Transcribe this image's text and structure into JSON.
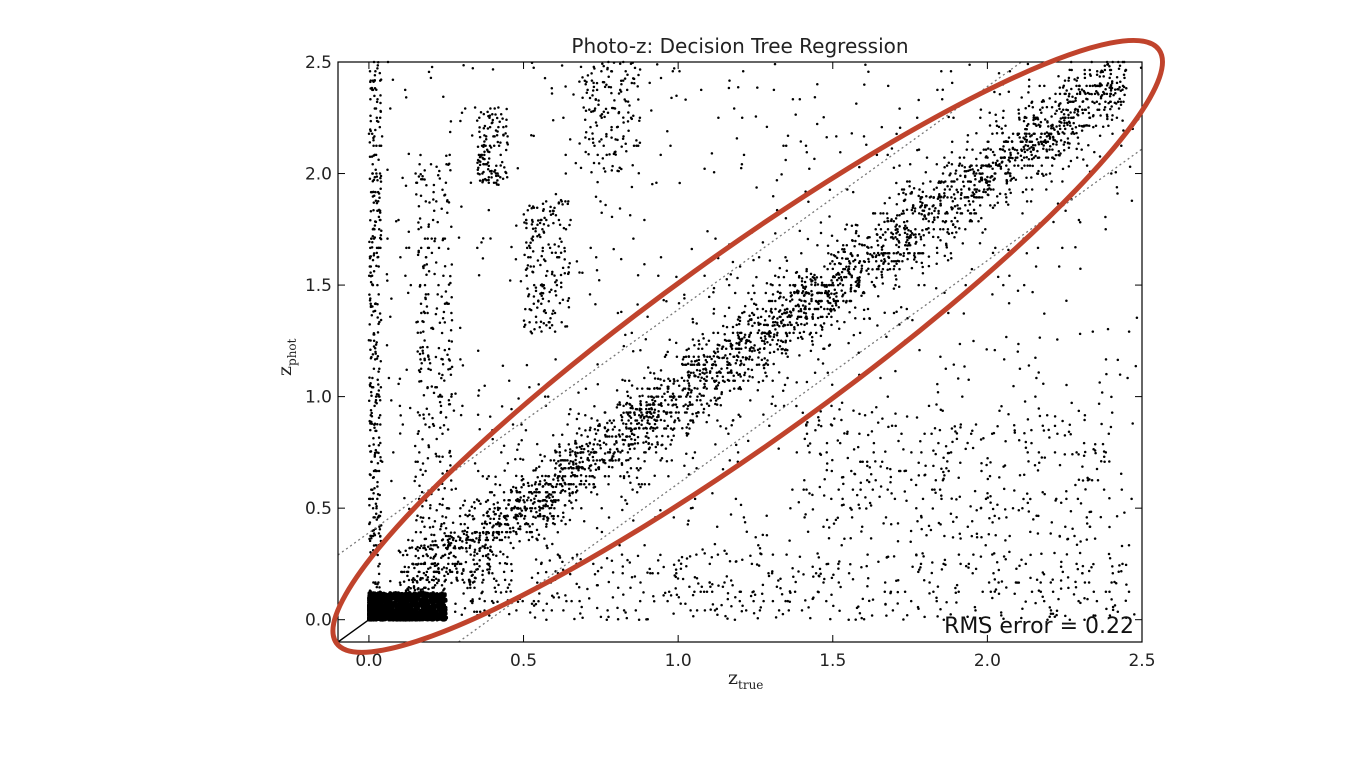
{
  "chart_data": {
    "type": "scatter",
    "title": "Photo-z: Decision Tree Regression",
    "xlabel": {
      "base": "z",
      "sub": "true"
    },
    "ylabel": {
      "base": "z",
      "sub": "phot"
    },
    "xlim": [
      -0.1,
      2.5
    ],
    "ylim": [
      -0.1,
      2.5
    ],
    "xticks": [
      0.0,
      0.5,
      1.0,
      1.5,
      2.0,
      2.5
    ],
    "yticks": [
      0.0,
      0.5,
      1.0,
      1.5,
      2.0,
      2.5
    ],
    "xtick_labels": [
      "0.0",
      "0.5",
      "1.0",
      "1.5",
      "2.0",
      "2.5"
    ],
    "ytick_labels": [
      "0.0",
      "0.5",
      "1.0",
      "1.5",
      "2.0",
      "2.5"
    ],
    "grid": false,
    "marker_color": "#000000",
    "reference_lines": [
      {
        "style": "dotted",
        "color": "#777777",
        "slope": 1.0,
        "offset_frac": 0.15
      },
      {
        "style": "dotted",
        "color": "#777777",
        "slope": 1.0,
        "offset_frac": -0.15
      },
      {
        "style": "solid",
        "color": "#000000",
        "slope": 1.0,
        "offset_frac": 0.0
      }
    ],
    "highlight": {
      "shape": "ellipse",
      "color": "#c0432c",
      "around": "diagonal y = x"
    },
    "annotation": "RMS error = 0.22",
    "point_clusters": [
      {
        "name": "low-z core",
        "x_range": [
          0.0,
          0.25
        ],
        "y_range": [
          0.0,
          0.12
        ],
        "count": 1400
      },
      {
        "name": "diagonal",
        "x_range": [
          0.1,
          2.45
        ],
        "slope": 1.0,
        "scatter": 0.09,
        "count": 2600
      },
      {
        "name": "diagonal-outer",
        "x_range": [
          0.1,
          2.45
        ],
        "slope": 1.0,
        "scatter": 0.22,
        "count": 500
      },
      {
        "name": "x~0 column",
        "x_range": [
          0.0,
          0.04
        ],
        "y_range": [
          0.05,
          2.5
        ],
        "count": 320
      },
      {
        "name": "x~0.2 column",
        "x_range": [
          0.15,
          0.27
        ],
        "y_range": [
          0.3,
          2.1
        ],
        "count": 260
      },
      {
        "name": "x~0.4 column",
        "x_range": [
          0.35,
          0.45
        ],
        "y_range": [
          1.95,
          2.3
        ],
        "count": 120
      },
      {
        "name": "x~0.6 cluster",
        "x_range": [
          0.5,
          0.65
        ],
        "y_range": [
          1.3,
          1.9
        ],
        "count": 170
      },
      {
        "name": "x~0.8 cluster",
        "x_range": [
          0.68,
          0.88
        ],
        "y_range": [
          2.0,
          2.5
        ],
        "count": 140
      },
      {
        "name": "low y band",
        "x_range": [
          0.3,
          2.45
        ],
        "y_range": [
          0.0,
          0.3
        ],
        "count": 420
      },
      {
        "name": "right clump",
        "x_range": [
          1.4,
          2.4
        ],
        "y_range": [
          0.35,
          0.95
        ],
        "count": 320
      },
      {
        "name": "background",
        "x_range": [
          0.0,
          2.5
        ],
        "y_range": [
          0.0,
          2.5
        ],
        "count": 900
      }
    ]
  }
}
